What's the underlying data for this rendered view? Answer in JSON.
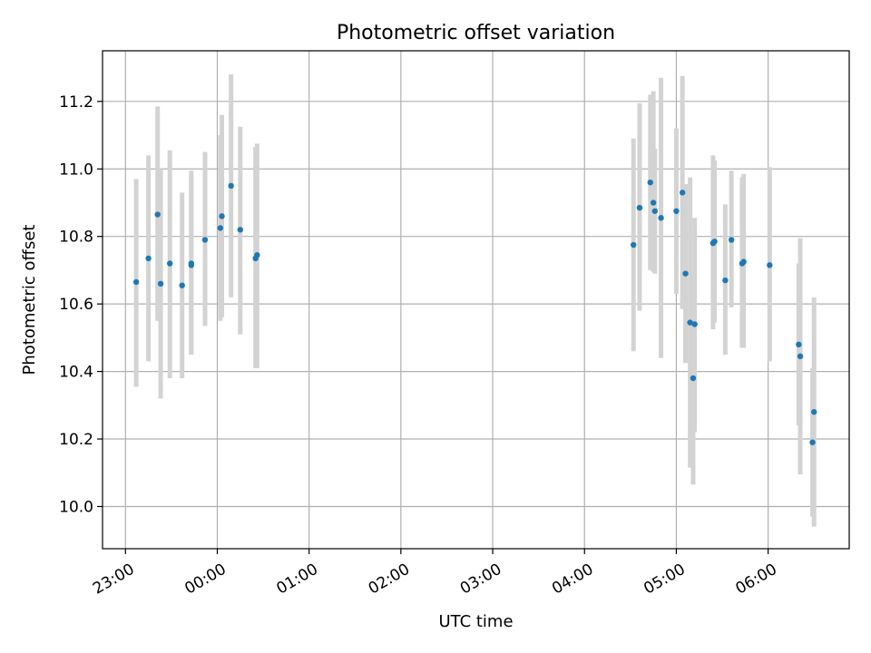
{
  "chart_data": {
    "type": "scatter",
    "title": "Photometric offset variation",
    "xlabel": "UTC time",
    "ylabel": "Photometric offset",
    "x_tick_labels": [
      "23:00",
      "00:00",
      "01:00",
      "02:00",
      "03:00",
      "04:00",
      "05:00",
      "06:00"
    ],
    "y_tick_labels": [
      "10.0",
      "10.2",
      "10.4",
      "10.6",
      "10.8",
      "11.0",
      "11.2"
    ],
    "y_ticks": [
      10.0,
      10.2,
      10.4,
      10.6,
      10.8,
      11.0,
      11.2
    ],
    "xlim": [
      "22:45",
      "06:53"
    ],
    "ylim": [
      9.875,
      11.35
    ],
    "grid": true,
    "colors": {
      "point": "#1f77b4",
      "errorbar": "#d3d3d3",
      "grid": "#b0b0b0"
    },
    "points": [
      {
        "x": "23:07",
        "y": 10.665,
        "lo": 10.355,
        "hi": 10.97
      },
      {
        "x": "23:15",
        "y": 10.735,
        "lo": 10.43,
        "hi": 11.04
      },
      {
        "x": "23:21",
        "y": 10.865,
        "lo": 10.55,
        "hi": 11.185
      },
      {
        "x": "23:23",
        "y": 10.66,
        "lo": 10.32,
        "hi": 11.0
      },
      {
        "x": "23:29",
        "y": 10.72,
        "lo": 10.38,
        "hi": 11.055
      },
      {
        "x": "23:37",
        "y": 10.655,
        "lo": 10.38,
        "hi": 10.93
      },
      {
        "x": "23:43",
        "y": 10.72,
        "lo": 10.45,
        "hi": 10.995
      },
      {
        "x": "23:43",
        "y": 10.715,
        "lo": 10.45,
        "hi": 10.98
      },
      {
        "x": "23:52",
        "y": 10.79,
        "lo": 10.535,
        "hi": 11.05
      },
      {
        "x": "00:02",
        "y": 10.825,
        "lo": 10.55,
        "hi": 11.1
      },
      {
        "x": "00:03",
        "y": 10.86,
        "lo": 10.56,
        "hi": 11.16
      },
      {
        "x": "00:09",
        "y": 10.95,
        "lo": 10.62,
        "hi": 11.28
      },
      {
        "x": "00:15",
        "y": 10.82,
        "lo": 10.51,
        "hi": 11.125
      },
      {
        "x": "00:25",
        "y": 10.735,
        "lo": 10.41,
        "hi": 11.065
      },
      {
        "x": "00:26",
        "y": 10.745,
        "lo": 10.41,
        "hi": 11.075
      },
      {
        "x": "04:32",
        "y": 10.775,
        "lo": 10.46,
        "hi": 11.09
      },
      {
        "x": "04:36",
        "y": 10.885,
        "lo": 10.58,
        "hi": 11.195
      },
      {
        "x": "04:43",
        "y": 10.96,
        "lo": 10.7,
        "hi": 11.22
      },
      {
        "x": "04:45",
        "y": 10.9,
        "lo": 10.695,
        "hi": 11.23
      },
      {
        "x": "04:46",
        "y": 10.875,
        "lo": 10.69,
        "hi": 11.06
      },
      {
        "x": "04:50",
        "y": 10.855,
        "lo": 10.44,
        "hi": 11.27
      },
      {
        "x": "05:00",
        "y": 10.875,
        "lo": 10.63,
        "hi": 11.12
      },
      {
        "x": "05:04",
        "y": 10.93,
        "lo": 10.585,
        "hi": 11.275
      },
      {
        "x": "05:06",
        "y": 10.69,
        "lo": 10.425,
        "hi": 10.955
      },
      {
        "x": "05:09",
        "y": 10.545,
        "lo": 10.115,
        "hi": 10.975
      },
      {
        "x": "05:11",
        "y": 10.38,
        "lo": 10.065,
        "hi": 10.695
      },
      {
        "x": "05:12",
        "y": 10.54,
        "lo": 10.22,
        "hi": 10.855
      },
      {
        "x": "05:24",
        "y": 10.78,
        "lo": 10.525,
        "hi": 11.04
      },
      {
        "x": "05:25",
        "y": 10.785,
        "lo": 10.545,
        "hi": 11.025
      },
      {
        "x": "05:32",
        "y": 10.67,
        "lo": 10.45,
        "hi": 10.895
      },
      {
        "x": "05:36",
        "y": 10.79,
        "lo": 10.59,
        "hi": 10.995
      },
      {
        "x": "05:43",
        "y": 10.72,
        "lo": 10.47,
        "hi": 10.975
      },
      {
        "x": "05:44",
        "y": 10.725,
        "lo": 10.47,
        "hi": 10.985
      },
      {
        "x": "06:01",
        "y": 10.715,
        "lo": 10.43,
        "hi": 11.005
      },
      {
        "x": "06:20",
        "y": 10.48,
        "lo": 10.24,
        "hi": 10.72
      },
      {
        "x": "06:21",
        "y": 10.445,
        "lo": 10.095,
        "hi": 10.795
      },
      {
        "x": "06:29",
        "y": 10.19,
        "lo": 9.97,
        "hi": 10.41
      },
      {
        "x": "06:30",
        "y": 10.28,
        "lo": 9.94,
        "hi": 10.62
      }
    ]
  }
}
